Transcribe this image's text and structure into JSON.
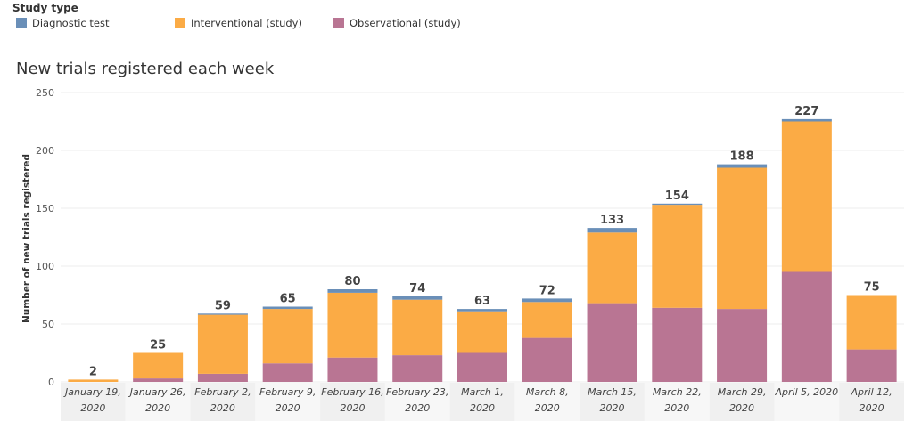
{
  "legend": {
    "title": "Study type",
    "items": [
      {
        "label": "Diagnostic test",
        "color": "#6a8fb8"
      },
      {
        "label": "Interventional (study)",
        "color": "#fbab45"
      },
      {
        "label": "Observational (study)",
        "color": "#b97593"
      }
    ]
  },
  "chart_data": {
    "type": "bar",
    "stacked": true,
    "title": "New trials registered each week",
    "xlabel": "",
    "ylabel": "Number of new trials registered",
    "ylim": [
      0,
      250
    ],
    "yticks": [
      0,
      50,
      100,
      150,
      200,
      250
    ],
    "categories": [
      [
        "January 19,",
        "2020"
      ],
      [
        "January 26,",
        "2020"
      ],
      [
        "February 2,",
        "2020"
      ],
      [
        "February 9,",
        "2020"
      ],
      [
        "February 16,",
        "2020"
      ],
      [
        "February 23,",
        "2020"
      ],
      [
        "March 1,",
        "2020"
      ],
      [
        "March 8,",
        "2020"
      ],
      [
        "March 15,",
        "2020"
      ],
      [
        "March 22,",
        "2020"
      ],
      [
        "March 29,",
        "2020"
      ],
      [
        "April 5, 2020",
        ""
      ],
      [
        "April 12,",
        "2020"
      ]
    ],
    "series": [
      {
        "name": "Observational (study)",
        "color": "#b97593",
        "values": [
          0,
          3,
          7,
          16,
          21,
          23,
          25,
          38,
          68,
          64,
          63,
          95,
          28
        ]
      },
      {
        "name": "Interventional (study)",
        "color": "#fbab45",
        "values": [
          2,
          22,
          51,
          47,
          56,
          48,
          36,
          31,
          61,
          89,
          122,
          130,
          47
        ]
      },
      {
        "name": "Diagnostic test",
        "color": "#6a8fb8",
        "values": [
          0,
          0,
          1,
          2,
          3,
          3,
          2,
          3,
          4,
          1,
          3,
          2,
          0
        ]
      }
    ],
    "totals": [
      2,
      25,
      59,
      65,
      80,
      74,
      63,
      72,
      133,
      154,
      188,
      227,
      75
    ]
  }
}
